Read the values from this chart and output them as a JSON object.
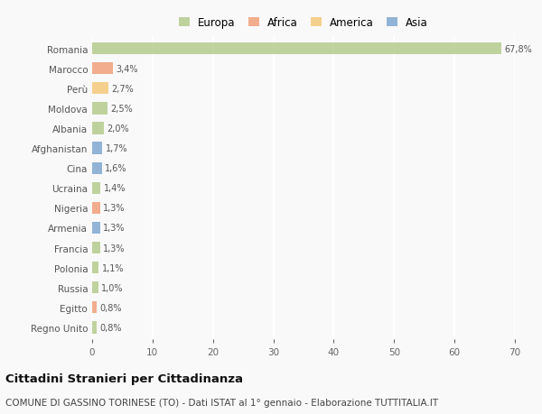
{
  "countries": [
    "Romania",
    "Marocco",
    "Perù",
    "Moldova",
    "Albania",
    "Afghanistan",
    "Cina",
    "Ucraina",
    "Nigeria",
    "Armenia",
    "Francia",
    "Polonia",
    "Russia",
    "Egitto",
    "Regno Unito"
  ],
  "values": [
    67.8,
    3.4,
    2.7,
    2.5,
    2.0,
    1.7,
    1.6,
    1.4,
    1.3,
    1.3,
    1.3,
    1.1,
    1.0,
    0.8,
    0.8
  ],
  "labels": [
    "67,8%",
    "3,4%",
    "2,7%",
    "2,5%",
    "2,0%",
    "1,7%",
    "1,6%",
    "1,4%",
    "1,3%",
    "1,3%",
    "1,3%",
    "1,1%",
    "1,0%",
    "0,8%",
    "0,8%"
  ],
  "colors": [
    "#b5cc8e",
    "#f0a07a",
    "#f5c97a",
    "#b5cc8e",
    "#b5cc8e",
    "#7fa8d0",
    "#7fa8d0",
    "#b5cc8e",
    "#f0a07a",
    "#7fa8d0",
    "#b5cc8e",
    "#b5cc8e",
    "#b5cc8e",
    "#f0a07a",
    "#b5cc8e"
  ],
  "legend_labels": [
    "Europa",
    "Africa",
    "America",
    "Asia"
  ],
  "legend_colors": [
    "#b5cc8e",
    "#f0a07a",
    "#f5c97a",
    "#7fa8d0"
  ],
  "title": "Cittadini Stranieri per Cittadinanza",
  "subtitle": "COMUNE DI GASSINO TORINESE (TO) - Dati ISTAT al 1° gennaio - Elaborazione TUTTITALIA.IT",
  "xlim": [
    0,
    70
  ],
  "xticks": [
    0,
    10,
    20,
    30,
    40,
    50,
    60,
    70
  ],
  "background_color": "#f9f9f9",
  "grid_color": "#ffffff",
  "bar_height": 0.6
}
